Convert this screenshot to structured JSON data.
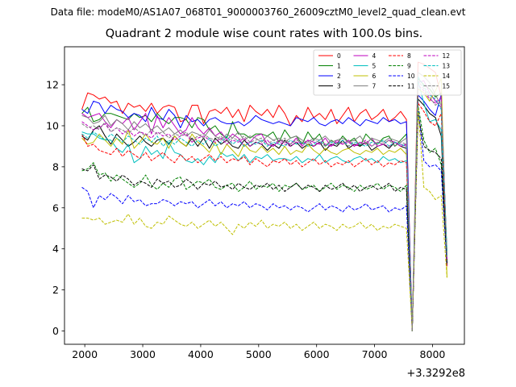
{
  "suptitle": "Data file: modeM0/AS1A07_068T01_9000003760_26009cztM0_level2_quad_clean.evt",
  "chart_data": {
    "type": "line",
    "title": "Quadrant 2 module wise count rates with 100.0s bins.",
    "xlabel": "",
    "ylabel": "",
    "x_offset_label": "+3.3292e8",
    "xlim": [
      1650,
      8550
    ],
    "ylim": [
      -0.65,
      13.85
    ],
    "x_ticks": [
      2000,
      3000,
      4000,
      5000,
      6000,
      7000,
      8000
    ],
    "y_ticks": [
      0,
      2,
      4,
      6,
      8,
      10,
      12
    ],
    "legend_position": "top-right",
    "x": [
      1950,
      2050,
      2150,
      2250,
      2350,
      2450,
      2550,
      2650,
      2750,
      2850,
      2950,
      3050,
      3150,
      3250,
      3350,
      3450,
      3550,
      3650,
      3750,
      3850,
      3950,
      4050,
      4150,
      4250,
      4350,
      4450,
      4550,
      4650,
      4750,
      4850,
      4950,
      5050,
      5150,
      5250,
      5350,
      5450,
      5550,
      5650,
      5750,
      5850,
      5950,
      6050,
      6150,
      6250,
      6350,
      6450,
      6550,
      6650,
      6750,
      6850,
      6950,
      7050,
      7150,
      7250,
      7350,
      7450,
      7550,
      7650,
      7750,
      7850,
      7950,
      8050,
      8150,
      8250
    ],
    "series": [
      {
        "name": "0",
        "color": "#ff0000",
        "dash": "solid",
        "values": [
          10.8,
          11.6,
          11.5,
          11.3,
          11.4,
          11.1,
          11.2,
          10.6,
          11.1,
          10.9,
          11.0,
          10.7,
          11.1,
          10.6,
          10.9,
          11.0,
          10.9,
          10.2,
          10.3,
          11.0,
          11.0,
          10.1,
          10.7,
          10.8,
          10.6,
          10.9,
          10.4,
          10.8,
          10.2,
          11.0,
          10.7,
          10.5,
          10.8,
          10.4,
          11.0,
          10.6,
          10.0,
          10.5,
          10.2,
          10.9,
          10.4,
          10.6,
          10.3,
          10.8,
          10.1,
          10.5,
          10.9,
          10.2,
          10.6,
          10.8,
          10.3,
          10.5,
          10.8,
          10.2,
          10.4,
          10.7,
          10.3,
          0.0,
          13.1,
          13.0,
          12.8,
          12.6,
          11.4,
          3.4
        ]
      },
      {
        "name": "1",
        "color": "#008000",
        "dash": "solid",
        "values": [
          10.6,
          10.9,
          10.2,
          10.3,
          10.6,
          10.6,
          10.5,
          10.4,
          10.3,
          10.6,
          10.4,
          10.5,
          10.2,
          10.6,
          10.3,
          10.1,
          10.4,
          10.4,
          10.3,
          9.9,
          10.4,
          10.3,
          9.8,
          10.0,
          9.6,
          9.4,
          10.2,
          9.6,
          9.6,
          9.4,
          9.6,
          9.6,
          9.5,
          9.7,
          9.2,
          9.8,
          9.4,
          9.5,
          9.1,
          9.7,
          9.3,
          9.6,
          9.0,
          9.3,
          9.1,
          9.5,
          9.2,
          9.4,
          9.0,
          9.6,
          9.3,
          9.1,
          9.4,
          9.5,
          9.0,
          9.3,
          9.6,
          0.0,
          12.3,
          12.0,
          11.8,
          11.4,
          11.6,
          3.5
        ]
      },
      {
        "name": "2",
        "color": "#0000ff",
        "dash": "solid",
        "values": [
          10.8,
          10.6,
          11.2,
          11.1,
          10.6,
          11.0,
          10.8,
          10.7,
          10.4,
          10.6,
          10.5,
          10.2,
          10.9,
          10.4,
          10.3,
          10.8,
          10.5,
          9.9,
          10.5,
          10.2,
          10.3,
          10.0,
          10.3,
          10.4,
          10.2,
          10.1,
          10.1,
          10.2,
          10.0,
          10.2,
          10.5,
          10.3,
          10.2,
          10.1,
          10.2,
          10.1,
          10.0,
          10.4,
          10.3,
          10.2,
          10.4,
          10.1,
          10.0,
          10.2,
          10.3,
          10.1,
          10.4,
          10.2,
          10.0,
          10.3,
          10.2,
          10.1,
          10.4,
          10.2,
          10.3,
          10.1,
          10.2,
          0.0,
          11.5,
          11.2,
          10.8,
          10.5,
          11.5,
          3.3
        ]
      },
      {
        "name": "3",
        "color": "#000000",
        "dash": "solid",
        "values": [
          9.5,
          9.3,
          9.8,
          10.0,
          9.5,
          9.1,
          9.6,
          9.3,
          9.0,
          9.2,
          9.5,
          9.2,
          9.0,
          9.3,
          9.4,
          9.1,
          9.5,
          9.2,
          9.0,
          9.4,
          9.0,
          9.4,
          8.9,
          9.4,
          9.1,
          9.3,
          9.0,
          8.9,
          9.3,
          9.0,
          9.2,
          9.1,
          8.8,
          9.1,
          8.9,
          9.3,
          9.0,
          9.2,
          8.9,
          9.1,
          9.0,
          9.2,
          8.8,
          9.1,
          9.0,
          9.3,
          8.9,
          9.1,
          9.0,
          9.2,
          8.8,
          9.0,
          9.1,
          8.9,
          9.2,
          9.0,
          8.9,
          0.0,
          11.3,
          11.0,
          10.6,
          10.4,
          9.5,
          3.2
        ]
      },
      {
        "name": "4",
        "color": "#bf00bf",
        "dash": "solid",
        "values": [
          10.6,
          10.4,
          10.5,
          10.6,
          10.2,
          9.9,
          10.3,
          10.1,
          10.4,
          9.8,
          10.2,
          10.6,
          9.6,
          10.5,
          9.9,
          10.4,
          10.0,
          9.6,
          9.8,
          10.4,
          9.9,
          9.6,
          9.9,
          9.5,
          9.7,
          9.3,
          9.6,
          9.4,
          9.0,
          9.2,
          9.5,
          9.6,
          9.1,
          9.0,
          9.3,
          9.2,
          9.1,
          9.4,
          9.0,
          9.3,
          9.2,
          9.1,
          9.4,
          9.0,
          9.2,
          9.1,
          9.3,
          9.0,
          9.2,
          9.1,
          9.4,
          9.0,
          9.1,
          9.3,
          9.2,
          9.0,
          9.1,
          0.0,
          12.1,
          12.2,
          11.6,
          11.2,
          10.9,
          3.6
        ]
      },
      {
        "name": "5",
        "color": "#00bfbf",
        "dash": "solid",
        "values": [
          9.7,
          9.6,
          9.6,
          9.4,
          9.3,
          9.3,
          8.9,
          8.7,
          9.1,
          8.2,
          8.4,
          9.0,
          8.6,
          8.8,
          8.4,
          9.2,
          8.7,
          8.6,
          8.3,
          8.2,
          8.4,
          8.1,
          8.5,
          8.2,
          8.7,
          8.5,
          8.6,
          8.3,
          8.6,
          8.2,
          8.5,
          8.4,
          8.6,
          8.3,
          8.4,
          8.4,
          8.3,
          8.5,
          8.2,
          8.4,
          8.3,
          8.6,
          8.2,
          8.4,
          8.5,
          8.3,
          8.2,
          8.4,
          8.5,
          8.3,
          8.4,
          8.2,
          8.5,
          8.3,
          8.4,
          8.2,
          8.3,
          0.0,
          12.2,
          11.1,
          10.2,
          10.3,
          9.8,
          3.9
        ]
      },
      {
        "name": "6",
        "color": "#bfbf00",
        "dash": "solid",
        "values": [
          9.4,
          9.1,
          9.2,
          9.6,
          9.3,
          9.0,
          9.4,
          9.1,
          9.8,
          8.9,
          9.2,
          9.6,
          9.2,
          9.1,
          9.4,
          8.9,
          9.5,
          9.2,
          9.0,
          9.6,
          9.2,
          9.0,
          8.7,
          9.2,
          8.6,
          9.1,
          8.8,
          8.5,
          9.1,
          8.8,
          8.7,
          9.0,
          8.7,
          8.9,
          8.6,
          9.0,
          8.6,
          8.8,
          8.7,
          9.1,
          8.8,
          8.6,
          8.9,
          8.7,
          8.6,
          8.8,
          8.9,
          8.7,
          8.6,
          8.8,
          8.7,
          8.9,
          8.6,
          8.8,
          8.7,
          8.9,
          8.6,
          0.0,
          11.8,
          11.6,
          11.2,
          11.7,
          12.3,
          2.6
        ]
      },
      {
        "name": "7",
        "color": "#808080",
        "dash": "solid",
        "values": [
          10.5,
          10.4,
          10.1,
          10.2,
          10.5,
          10.0,
          10.3,
          10.1,
          9.8,
          10.2,
          9.9,
          10.1,
          9.8,
          10.0,
          9.7,
          9.9,
          9.6,
          9.8,
          9.5,
          9.7,
          9.6,
          9.4,
          9.8,
          9.5,
          9.3,
          9.6,
          9.4,
          9.7,
          9.3,
          9.5,
          9.4,
          9.2,
          9.5,
          9.3,
          9.4,
          9.2,
          9.4,
          9.5,
          9.3,
          9.2,
          9.4,
          9.3,
          9.5,
          9.2,
          9.3,
          9.4,
          9.2,
          9.3,
          9.5,
          9.1,
          9.4,
          9.3,
          9.2,
          9.4,
          9.3,
          9.2,
          9.4,
          0.0,
          12.6,
          12.4,
          12.1,
          11.5,
          11.0,
          3.8
        ]
      },
      {
        "name": "8",
        "color": "#ff0000",
        "dash": "dashed",
        "values": [
          9.6,
          9.0,
          9.1,
          8.8,
          8.7,
          8.6,
          8.9,
          8.5,
          8.8,
          8.6,
          8.4,
          8.7,
          8.3,
          8.5,
          8.7,
          8.4,
          8.2,
          8.6,
          8.3,
          8.5,
          8.2,
          8.4,
          8.6,
          8.3,
          8.5,
          8.2,
          8.4,
          8.3,
          8.5,
          8.1,
          8.4,
          8.2,
          8.0,
          8.3,
          8.2,
          8.4,
          8.1,
          8.3,
          8.0,
          8.2,
          8.4,
          8.1,
          8.3,
          8.0,
          8.2,
          8.1,
          8.3,
          8.0,
          8.2,
          8.4,
          8.1,
          8.3,
          8.0,
          8.2,
          8.1,
          8.3,
          8.2,
          0.0,
          11.1,
          10.7,
          10.2,
          10.0,
          10.6,
          3.1
        ]
      },
      {
        "name": "9",
        "color": "#008000",
        "dash": "dashed",
        "values": [
          7.8,
          7.9,
          8.2,
          7.6,
          7.7,
          7.3,
          7.6,
          7.4,
          7.2,
          7.0,
          7.2,
          7.6,
          7.1,
          6.9,
          7.2,
          7.0,
          7.4,
          7.5,
          6.9,
          7.1,
          7.3,
          7.2,
          7.4,
          7.0,
          6.9,
          7.1,
          7.2,
          6.8,
          7.0,
          7.3,
          6.9,
          7.1,
          7.0,
          7.2,
          6.8,
          7.1,
          7.0,
          7.2,
          6.9,
          7.0,
          7.1,
          6.8,
          7.0,
          7.2,
          6.9,
          7.1,
          7.0,
          6.8,
          7.1,
          6.9,
          7.0,
          7.2,
          6.9,
          7.1,
          7.0,
          6.8,
          7.1,
          0.0,
          11.0,
          9.3,
          8.7,
          8.9,
          8.1,
          3.4
        ]
      },
      {
        "name": "10",
        "color": "#0000ff",
        "dash": "dashed",
        "values": [
          7.0,
          6.8,
          6.0,
          6.6,
          6.4,
          6.7,
          6.5,
          6.2,
          6.6,
          6.3,
          6.4,
          6.1,
          6.2,
          6.2,
          6.4,
          6.3,
          6.1,
          6.3,
          6.2,
          6.3,
          6.0,
          6.2,
          6.4,
          6.1,
          6.3,
          6.0,
          6.2,
          6.1,
          6.3,
          6.0,
          6.2,
          6.1,
          5.9,
          6.2,
          6.0,
          6.1,
          5.9,
          6.1,
          6.0,
          5.8,
          6.0,
          6.2,
          5.9,
          6.1,
          6.0,
          5.8,
          6.1,
          5.9,
          6.0,
          6.2,
          5.9,
          6.0,
          6.1,
          5.8,
          6.0,
          5.9,
          6.1,
          0.0,
          10.9,
          8.3,
          8.0,
          8.1,
          7.8,
          3.2
        ]
      },
      {
        "name": "11",
        "color": "#000000",
        "dash": "dashed",
        "values": [
          7.9,
          7.8,
          8.1,
          7.4,
          7.6,
          7.5,
          7.3,
          7.6,
          7.4,
          7.1,
          7.3,
          7.2,
          7.0,
          7.4,
          7.2,
          7.3,
          7.0,
          7.1,
          7.4,
          7.2,
          6.9,
          7.2,
          7.1,
          7.3,
          7.0,
          7.1,
          6.9,
          7.2,
          7.0,
          6.9,
          7.1,
          7.0,
          7.2,
          6.9,
          7.1,
          6.8,
          7.0,
          7.2,
          6.9,
          7.1,
          7.0,
          6.8,
          7.1,
          6.9,
          7.0,
          7.2,
          6.9,
          7.1,
          6.8,
          7.0,
          7.1,
          6.9,
          7.0,
          7.2,
          6.8,
          7.0,
          6.9,
          0.0,
          10.6,
          9.0,
          8.8,
          8.7,
          8.4,
          3.3
        ]
      },
      {
        "name": "12",
        "color": "#bf00bf",
        "dash": "dashed",
        "values": [
          10.2,
          10.0,
          9.8,
          9.9,
          10.1,
          9.7,
          9.9,
          9.6,
          9.8,
          9.5,
          9.7,
          9.6,
          9.4,
          9.7,
          9.5,
          9.6,
          9.3,
          9.5,
          9.6,
          9.2,
          9.4,
          9.5,
          9.3,
          9.2,
          9.4,
          9.1,
          9.3,
          9.2,
          9.4,
          9.0,
          9.2,
          9.1,
          9.3,
          9.0,
          9.2,
          9.1,
          9.0,
          9.2,
          9.1,
          9.3,
          9.0,
          9.2,
          9.1,
          9.0,
          9.3,
          9.1,
          9.2,
          9.0,
          9.1,
          9.3,
          9.0,
          9.2,
          9.1,
          9.0,
          9.2,
          9.1,
          9.0,
          0.0,
          12.0,
          11.7,
          11.3,
          11.1,
          11.4,
          3.5
        ]
      },
      {
        "name": "13",
        "color": "#00bfbf",
        "dash": "dashed",
        "values": [
          9.6,
          9.4,
          9.7,
          9.5,
          9.3,
          9.6,
          9.4,
          9.2,
          9.5,
          9.3,
          9.1,
          9.4,
          9.2,
          9.5,
          9.0,
          9.3,
          9.1,
          9.4,
          9.2,
          9.0,
          9.3,
          9.1,
          9.4,
          9.0,
          9.2,
          9.5,
          9.1,
          9.3,
          9.0,
          9.2,
          9.1,
          9.3,
          9.0,
          9.2,
          9.1,
          9.0,
          9.3,
          9.1,
          9.2,
          9.0,
          9.1,
          9.3,
          9.0,
          9.2,
          9.1,
          9.3,
          9.0,
          9.2,
          9.1,
          9.0,
          9.2,
          9.1,
          9.3,
          9.0,
          9.2,
          9.1,
          9.0,
          0.0,
          12.4,
          11.9,
          11.5,
          11.3,
          10.8,
          3.7
        ]
      },
      {
        "name": "14",
        "color": "#bfbf00",
        "dash": "dashed",
        "values": [
          5.5,
          5.5,
          5.4,
          5.5,
          5.2,
          5.3,
          5.4,
          5.3,
          5.7,
          5.2,
          5.5,
          5.1,
          5.0,
          5.3,
          5.2,
          5.6,
          5.4,
          5.2,
          5.1,
          5.3,
          5.0,
          5.2,
          5.4,
          5.1,
          5.3,
          5.0,
          4.7,
          5.2,
          5.0,
          5.3,
          5.1,
          5.4,
          5.0,
          5.2,
          5.1,
          5.3,
          5.0,
          5.2,
          4.9,
          5.1,
          5.3,
          5.0,
          5.2,
          5.1,
          4.9,
          5.2,
          5.0,
          5.1,
          5.3,
          5.0,
          5.2,
          4.9,
          5.1,
          5.0,
          5.2,
          5.1,
          5.0,
          0.0,
          10.9,
          7.0,
          6.8,
          6.4,
          6.6,
          2.6
        ]
      },
      {
        "name": "15",
        "color": "#808080",
        "dash": "dashed",
        "values": [
          10.1,
          9.9,
          10.0,
          9.8,
          10.2,
          9.7,
          9.9,
          9.8,
          9.6,
          9.9,
          9.7,
          9.5,
          9.8,
          9.6,
          9.7,
          9.4,
          9.6,
          9.5,
          9.7,
          9.3,
          9.5,
          9.6,
          9.4,
          9.3,
          9.5,
          9.2,
          9.4,
          9.3,
          9.5,
          9.2,
          9.3,
          9.4,
          9.1,
          9.3,
          9.2,
          9.4,
          9.1,
          9.3,
          9.2,
          9.1,
          9.3,
          9.2,
          9.0,
          9.3,
          9.1,
          9.2,
          9.0,
          9.3,
          9.1,
          9.2,
          9.0,
          9.2,
          9.1,
          9.3,
          9.0,
          9.2,
          9.1,
          0.0,
          12.2,
          11.8,
          11.4,
          11.0,
          11.2,
          3.6
        ]
      }
    ]
  }
}
